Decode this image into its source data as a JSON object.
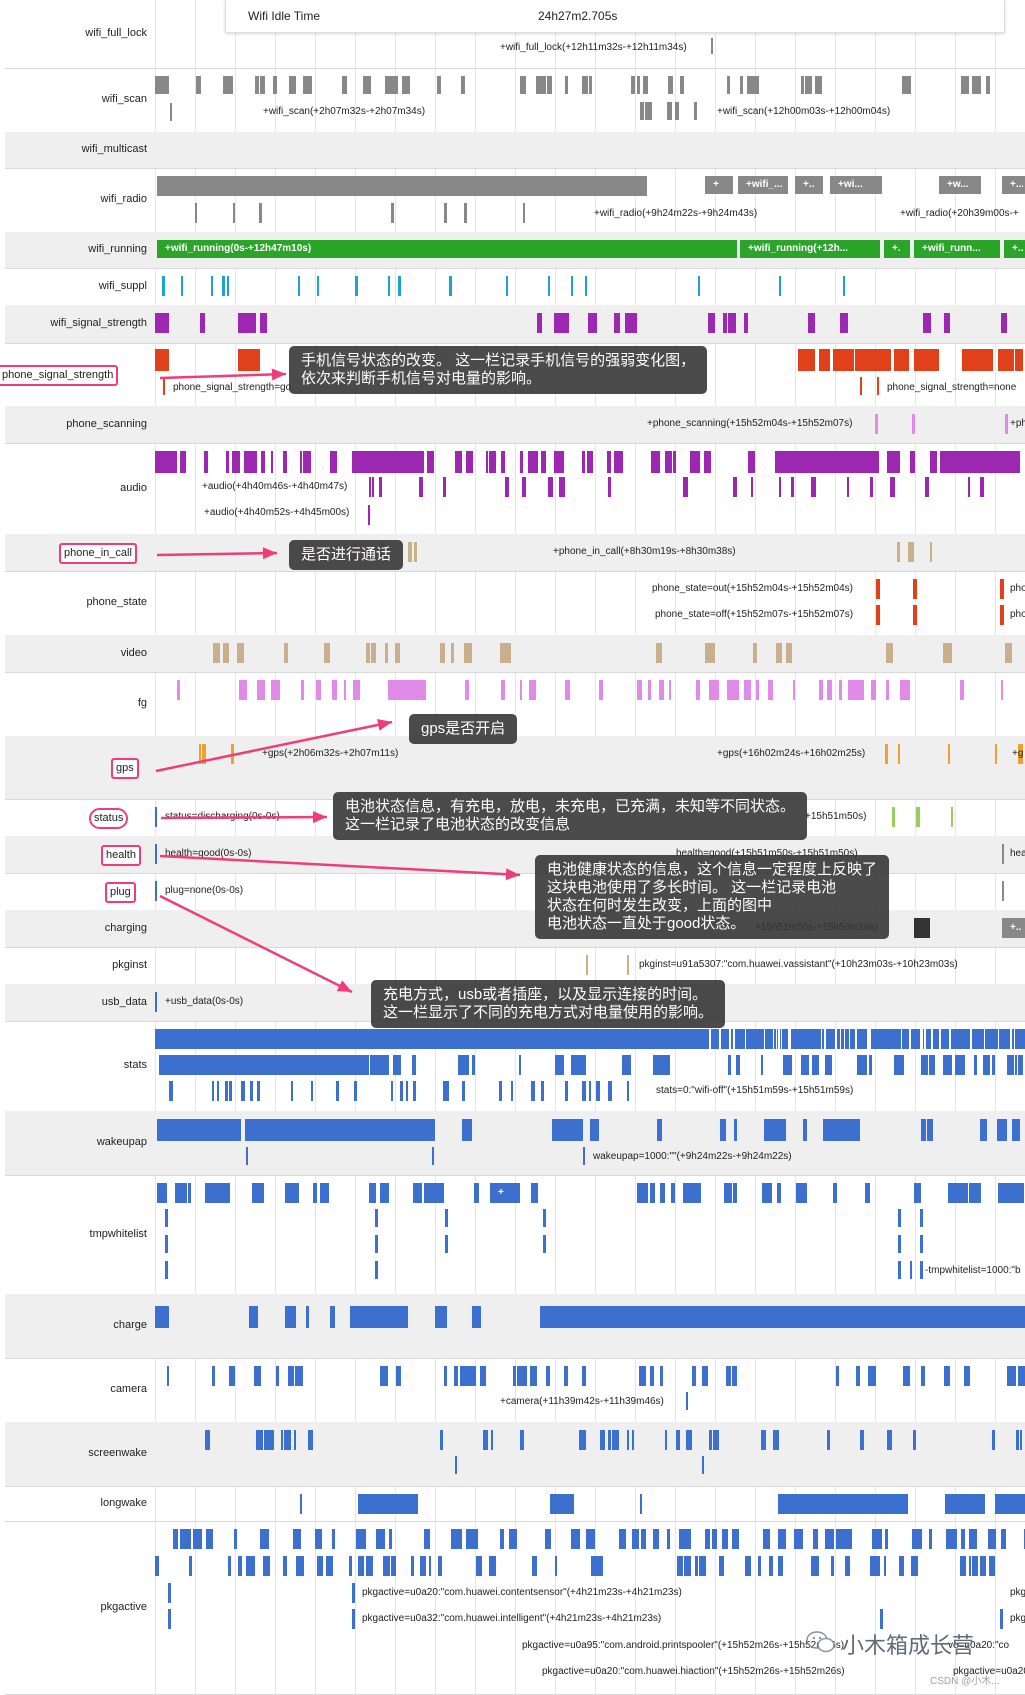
{
  "tooltip": {
    "key": "Wifi Idle Time",
    "value": "24h27m2.705s"
  },
  "colors": {
    "gray": "#888888",
    "green": "#2aa52a",
    "red": "#e0401a",
    "purple": "#9c27b0",
    "cyan": "#1aa6c8",
    "tan": "#c8b08c",
    "pink": "#e08be8",
    "orange": "#f0a030",
    "lime": "#9acd5a",
    "blue": "#3d6fcf",
    "dark": "#333333",
    "highlight": "#ee3d77"
  },
  "rows": [
    {
      "label": "wifi_full_lock",
      "events": [
        "+wifi_full_lock(+12h11m32s-+12h11m34s)"
      ]
    },
    {
      "label": "wifi_scan",
      "events": [
        "+wifi_scan(+2h07m32s-+2h07m34s)",
        "+wifi_scan(+12h00m03s-+12h00m04s)"
      ]
    },
    {
      "label": "wifi_multicast",
      "events": []
    },
    {
      "label": "wifi_radio",
      "events": [
        "+wifi_radio(+9h24m22s-+9h24m43s)",
        "+wifi_radio(+20h39m00s-+"
      ],
      "segments": [
        "+",
        "+wifi_...",
        "+..",
        "+wi...",
        "+w...",
        "+..."
      ]
    },
    {
      "label": "wifi_running",
      "events": [],
      "segments": [
        "+wifi_running(0s-+12h47m10s)",
        "+wifi_running(+12h...",
        "+.",
        "+wifi_runn...",
        "+..."
      ]
    },
    {
      "label": "wifi_suppl",
      "events": []
    },
    {
      "label": "wifi_signal_strength",
      "events": []
    },
    {
      "label": "phone_signal_strength",
      "events": [
        "phone_signal_strength=go",
        "phone_signal_strength=none"
      ]
    },
    {
      "label": "phone_scanning",
      "events": [
        "+phone_scanning(+15h52m04s-+15h52m07s)",
        "+ph"
      ]
    },
    {
      "label": "audio",
      "events": [
        "+audio(+4h40m46s-+4h40m47s)",
        "+audio(+4h40m52s-+4h45m00s)"
      ]
    },
    {
      "label": "phone_in_call",
      "events": [
        "+phone_in_call(+8h30m19s-+8h30m38s)"
      ]
    },
    {
      "label": "phone_state",
      "events": [
        "phone_state=out(+15h52m04s-+15h52m04s)",
        "phone_state=off(+15h52m07s-+15h52m07s)",
        "pho",
        "pho"
      ]
    },
    {
      "label": "video",
      "events": []
    },
    {
      "label": "fg",
      "events": []
    },
    {
      "label": "gps",
      "events": [
        "+gps(+2h06m32s-+2h07m11s)",
        "+gps(+16h02m24s-+16h02m25s)",
        "+g"
      ]
    },
    {
      "label": "status",
      "events": [
        "status=discharging(0s-0s)",
        "+15h51m50s)"
      ]
    },
    {
      "label": "health",
      "events": [
        "health=good(0s-0s)",
        "health=good(+15h51m50s-+15h51m50s)",
        "hea"
      ]
    },
    {
      "label": "plug",
      "events": [
        "plug=none(0s-0s)"
      ]
    },
    {
      "label": "charging",
      "events": [
        "+15h51m50s-+15h58m16s)"
      ],
      "segments": [
        "+.."
      ]
    },
    {
      "label": "pkginst",
      "events": [
        "pkginst=u91a5307:\"com.huawei.vassistant\"(+10h23m03s-+10h23m03s)"
      ]
    },
    {
      "label": "usb_data",
      "events": [
        "+usb_data(0s-0s)"
      ]
    },
    {
      "label": "stats",
      "events": [
        "stats=0:\"wifi-off\"(+15h51m59s-+15h51m59s)"
      ]
    },
    {
      "label": "wakeupap",
      "events": [
        "wakeupap=1000:\"\"(+9h24m22s-+9h24m22s)"
      ]
    },
    {
      "label": "tmpwhitelist",
      "events": [
        "-tmpwhitelist=1000:\"b"
      ],
      "segments": [
        "+"
      ]
    },
    {
      "label": "charge",
      "events": []
    },
    {
      "label": "camera",
      "events": [
        "+camera(+11h39m42s-+11h39m46s)"
      ]
    },
    {
      "label": "screenwake",
      "events": []
    },
    {
      "label": "longwake",
      "events": []
    },
    {
      "label": "pkgactive",
      "events": [
        "pkgactive=u0a20:\"com.huawei.contentsensor\"(+4h21m23s-+4h21m23s)",
        "pkgactive=u0a32:\"com.huawei.intelligent\"(+4h21m23s-+4h21m23s)",
        "pkgactive=u0a95:\"com.android.printspooler\"(+15h52m26s-+15h52m26s)",
        "pkgactive=u0a20:\"com.huawei.hiaction\"(+15h52m26s-+15h52m26s)",
        "pkg",
        "pkg",
        "ve=u0a20:\"co",
        "pkgactive=u0a20:\"co"
      ]
    }
  ],
  "callouts": [
    {
      "lines": [
        "手机信号状态的改变。 这一栏记录手机信号的强弱变化图，",
        "依次来判断手机信号对电量的影响。"
      ]
    },
    {
      "lines": [
        "是否进行通话"
      ]
    },
    {
      "lines": [
        "gps是否开启"
      ]
    },
    {
      "lines": [
        "电池状态信息，有充电，放电，未充电，已充满，未知等不同状态。",
        "这一栏记录了电池状态的改变信息"
      ]
    },
    {
      "lines": [
        "电池健康状态的信息，这个信息一定程度上反映了",
        "这块电池使用了多长时间。 这一栏记录电池",
        "状态在何时发生改变，上面的图中",
        "电池状态一直处于good状态。"
      ]
    },
    {
      "lines": [
        "充电方式，usb或者插座，以及显示连接的时间。",
        "这一栏显示了不同的充电方式对电量使用的影响。"
      ]
    }
  ],
  "watermark": {
    "text": "小木箱成长营",
    "sub": "CSDN @小木..."
  }
}
